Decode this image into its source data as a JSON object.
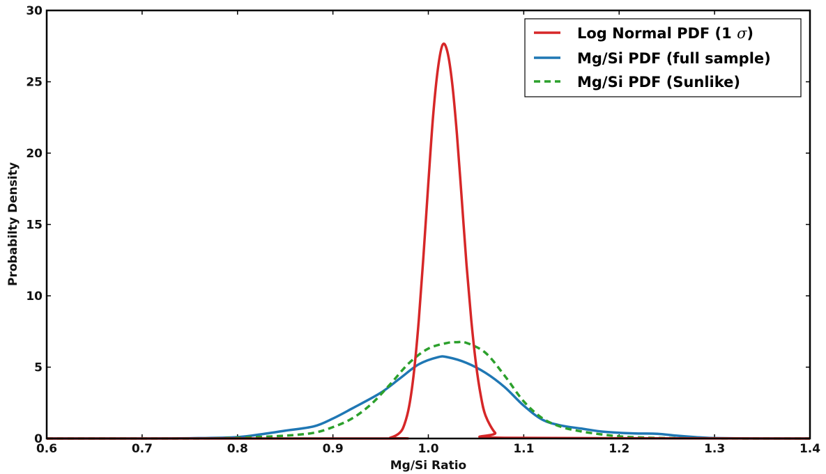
{
  "chart_data": {
    "type": "line",
    "title": "",
    "xlabel": "Mg/Si Ratio",
    "ylabel": "Probabilty Density",
    "xlim": [
      0.6,
      1.4
    ],
    "ylim": [
      0,
      30
    ],
    "x_ticks": [
      "0.6",
      "0.7",
      "0.8",
      "0.9",
      "1.0",
      "1.1",
      "1.2",
      "1.3",
      "1.4"
    ],
    "y_ticks": [
      "0",
      "5",
      "10",
      "15",
      "20",
      "25",
      "30"
    ],
    "grid": false,
    "legend_position": "top-right",
    "series": [
      {
        "name": "Log Normal PDF (1 σ)",
        "legend_prefix": "Log Normal PDF (1 ",
        "legend_symbol": "σ",
        "legend_suffix": ")",
        "color": "#d62728",
        "style": "solid",
        "x": [
          0.6,
          0.95,
          0.96,
          0.97,
          0.975,
          0.98,
          0.985,
          0.99,
          0.995,
          1.0,
          1.005,
          1.01,
          1.015,
          1.02,
          1.025,
          1.03,
          1.035,
          1.04,
          1.045,
          1.05,
          1.055,
          1.06,
          1.07,
          1.08,
          1.4
        ],
        "y": [
          0,
          0,
          0.05,
          0.4,
          1.0,
          2.3,
          4.7,
          8.3,
          12.9,
          17.9,
          22.6,
          25.9,
          27.6,
          27.1,
          24.9,
          21.3,
          16.8,
          12.2,
          8.3,
          5.2,
          3.0,
          1.6,
          0.4,
          0.05,
          0
        ]
      },
      {
        "name": "Mg/Si PDF (full sample)",
        "color": "#1f77b4",
        "style": "solid",
        "x": [
          0.6,
          0.7,
          0.75,
          0.8,
          0.83,
          0.85,
          0.88,
          0.9,
          0.92,
          0.95,
          0.97,
          0.99,
          1.01,
          1.02,
          1.04,
          1.06,
          1.08,
          1.1,
          1.12,
          1.14,
          1.16,
          1.18,
          1.2,
          1.22,
          1.24,
          1.26,
          1.28,
          1.3,
          1.35,
          1.4
        ],
        "y": [
          0,
          0,
          0.02,
          0.1,
          0.35,
          0.55,
          0.85,
          1.4,
          2.1,
          3.2,
          4.2,
          5.2,
          5.7,
          5.7,
          5.3,
          4.6,
          3.6,
          2.3,
          1.3,
          0.9,
          0.7,
          0.5,
          0.4,
          0.35,
          0.33,
          0.2,
          0.1,
          0.03,
          0,
          0
        ]
      },
      {
        "name": "Mg/Si PDF (Sunlike)",
        "color": "#2ca02c",
        "style": "dashed",
        "x": [
          0.6,
          0.75,
          0.8,
          0.85,
          0.88,
          0.9,
          0.92,
          0.94,
          0.96,
          0.98,
          1.0,
          1.02,
          1.03,
          1.04,
          1.06,
          1.08,
          1.1,
          1.12,
          1.14,
          1.16,
          1.18,
          1.2,
          1.22,
          1.25,
          1.3,
          1.35,
          1.4
        ],
        "y": [
          0,
          0,
          0.05,
          0.2,
          0.4,
          0.8,
          1.4,
          2.4,
          3.8,
          5.3,
          6.3,
          6.7,
          6.75,
          6.7,
          6.0,
          4.4,
          2.6,
          1.4,
          0.8,
          0.5,
          0.3,
          0.15,
          0.08,
          0.03,
          0.01,
          0,
          0
        ]
      }
    ]
  }
}
